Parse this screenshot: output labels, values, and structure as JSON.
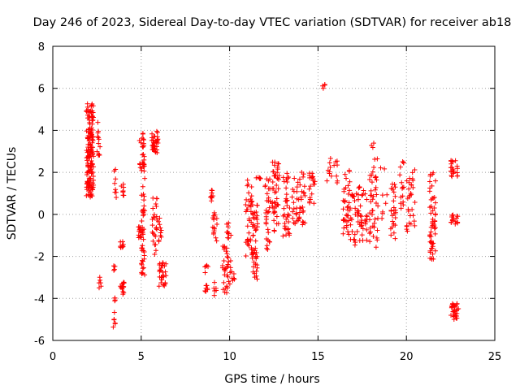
{
  "chart_data": {
    "type": "scatter",
    "title": "Day 246 of 2023, Sidereal Day-to-day VTEC variation (SDTVAR) for receiver ab18",
    "xlabel": "GPS time / hours",
    "ylabel": "SDTVAR / TECUs",
    "xlim": [
      0,
      25
    ],
    "ylim": [
      -6,
      8
    ],
    "xticks": [
      0,
      5,
      10,
      15,
      20,
      25
    ],
    "yticks": [
      -6,
      -4,
      -2,
      0,
      2,
      4,
      6,
      8
    ],
    "grid": true,
    "marker": "+",
    "colors": {
      "points": "#ff0000",
      "grid": "#a0a0a0",
      "axes": "#000000"
    },
    "series": [
      {
        "name": "SDTVAR",
        "clusters": [
          {
            "x": [
              1.9,
              2.3
            ],
            "y": [
              0.8,
              5.3
            ],
            "n": 160
          },
          {
            "x": [
              2.5,
              2.7
            ],
            "y": [
              2.8,
              4.4
            ],
            "n": 12
          },
          {
            "x": [
              2.6,
              2.75
            ],
            "y": [
              -3.5,
              -2.8
            ],
            "n": 6
          },
          {
            "x": [
              3.4,
              3.55
            ],
            "y": [
              -5.4,
              -3.9
            ],
            "n": 10
          },
          {
            "x": [
              3.4,
              3.55
            ],
            "y": [
              -2.7,
              -2.4
            ],
            "n": 4
          },
          {
            "x": [
              3.4,
              3.6
            ],
            "y": [
              0.1,
              2.2
            ],
            "n": 8
          },
          {
            "x": [
              3.8,
              4.05
            ],
            "y": [
              -3.8,
              -3.1
            ],
            "n": 14
          },
          {
            "x": [
              3.8,
              4.05
            ],
            "y": [
              -1.6,
              -1.2
            ],
            "n": 8
          },
          {
            "x": [
              3.85,
              4.05
            ],
            "y": [
              0.8,
              1.5
            ],
            "n": 8
          },
          {
            "x": [
              4.9,
              5.2
            ],
            "y": [
              2.0,
              4.0
            ],
            "n": 30
          },
          {
            "x": [
              4.85,
              5.15
            ],
            "y": [
              -1.2,
              -0.5
            ],
            "n": 20
          },
          {
            "x": [
              5.0,
              5.2
            ],
            "y": [
              -3.0,
              -1.0
            ],
            "n": 20
          },
          {
            "x": [
              5.0,
              5.2
            ],
            "y": [
              -0.4,
              1.9
            ],
            "n": 15
          },
          {
            "x": [
              5.6,
              5.95
            ],
            "y": [
              2.9,
              4.0
            ],
            "n": 35
          },
          {
            "x": [
              5.6,
              5.9
            ],
            "y": [
              -2.0,
              0.8
            ],
            "n": 25
          },
          {
            "x": [
              6.0,
              6.4
            ],
            "y": [
              -3.5,
              -2.3
            ],
            "n": 30
          },
          {
            "x": [
              5.95,
              6.15
            ],
            "y": [
              -1.5,
              -0.1
            ],
            "n": 10
          },
          {
            "x": [
              8.6,
              8.8
            ],
            "y": [
              -3.9,
              -2.3
            ],
            "n": 12
          },
          {
            "x": [
              8.9,
              9.15
            ],
            "y": [
              0.6,
              1.5
            ],
            "n": 8
          },
          {
            "x": [
              9.0,
              9.3
            ],
            "y": [
              -1.5,
              0.2
            ],
            "n": 15
          },
          {
            "x": [
              9.1,
              9.3
            ],
            "y": [
              -4.0,
              -2.8
            ],
            "n": 6
          },
          {
            "x": [
              9.6,
              9.95
            ],
            "y": [
              -3.8,
              -1.5
            ],
            "n": 30
          },
          {
            "x": [
              9.8,
              10.1
            ],
            "y": [
              -1.2,
              -0.3
            ],
            "n": 10
          },
          {
            "x": [
              10.0,
              10.3
            ],
            "y": [
              -3.6,
              -2.2
            ],
            "n": 10
          },
          {
            "x": [
              10.9,
              11.3
            ],
            "y": [
              -2.2,
              1.7
            ],
            "n": 40
          },
          {
            "x": [
              11.3,
              11.6
            ],
            "y": [
              -3.1,
              0.5
            ],
            "n": 45
          },
          {
            "x": [
              11.5,
              11.8
            ],
            "y": [
              1.6,
              2.0
            ],
            "n": 6
          },
          {
            "x": [
              12.0,
              12.3
            ],
            "y": [
              -1.8,
              1.8
            ],
            "n": 30
          },
          {
            "x": [
              12.4,
              12.8
            ],
            "y": [
              -0.8,
              2.5
            ],
            "n": 45
          },
          {
            "x": [
              13.0,
              13.4
            ],
            "y": [
              -1.4,
              2.3
            ],
            "n": 35
          },
          {
            "x": [
              13.5,
              13.8
            ],
            "y": [
              -0.5,
              1.8
            ],
            "n": 15
          },
          {
            "x": [
              13.8,
              14.3
            ],
            "y": [
              -0.5,
              2.2
            ],
            "n": 30
          },
          {
            "x": [
              14.5,
              14.85
            ],
            "y": [
              0.5,
              2.0
            ],
            "n": 20
          },
          {
            "x": [
              15.2,
              15.4
            ],
            "y": [
              5.9,
              6.2
            ],
            "n": 4
          },
          {
            "x": [
              15.5,
              16.1
            ],
            "y": [
              1.5,
              2.8
            ],
            "n": 15
          },
          {
            "x": [
              16.4,
              16.8
            ],
            "y": [
              -1.1,
              2.3
            ],
            "n": 35
          },
          {
            "x": [
              16.8,
              17.3
            ],
            "y": [
              -1.5,
              1.0
            ],
            "n": 30
          },
          {
            "x": [
              17.3,
              17.8
            ],
            "y": [
              -1.3,
              1.5
            ],
            "n": 30
          },
          {
            "x": [
              17.9,
              18.4
            ],
            "y": [
              -1.6,
              3.4
            ],
            "n": 45
          },
          {
            "x": [
              18.5,
              18.9
            ],
            "y": [
              -0.2,
              2.8
            ],
            "n": 8
          },
          {
            "x": [
              19.1,
              19.4
            ],
            "y": [
              -1.2,
              1.5
            ],
            "n": 25
          },
          {
            "x": [
              19.6,
              19.9
            ],
            "y": [
              0.2,
              2.6
            ],
            "n": 15
          },
          {
            "x": [
              20.0,
              20.5
            ],
            "y": [
              -0.8,
              2.2
            ],
            "n": 30
          },
          {
            "x": [
              21.3,
              21.65
            ],
            "y": [
              -2.2,
              2.0
            ],
            "n": 55
          },
          {
            "x": [
              22.5,
              22.9
            ],
            "y": [
              1.8,
              2.6
            ],
            "n": 22
          },
          {
            "x": [
              22.5,
              22.9
            ],
            "y": [
              -0.5,
              0.0
            ],
            "n": 15
          },
          {
            "x": [
              22.5,
              22.95
            ],
            "y": [
              -5.0,
              -4.2
            ],
            "n": 30
          }
        ]
      }
    ]
  }
}
